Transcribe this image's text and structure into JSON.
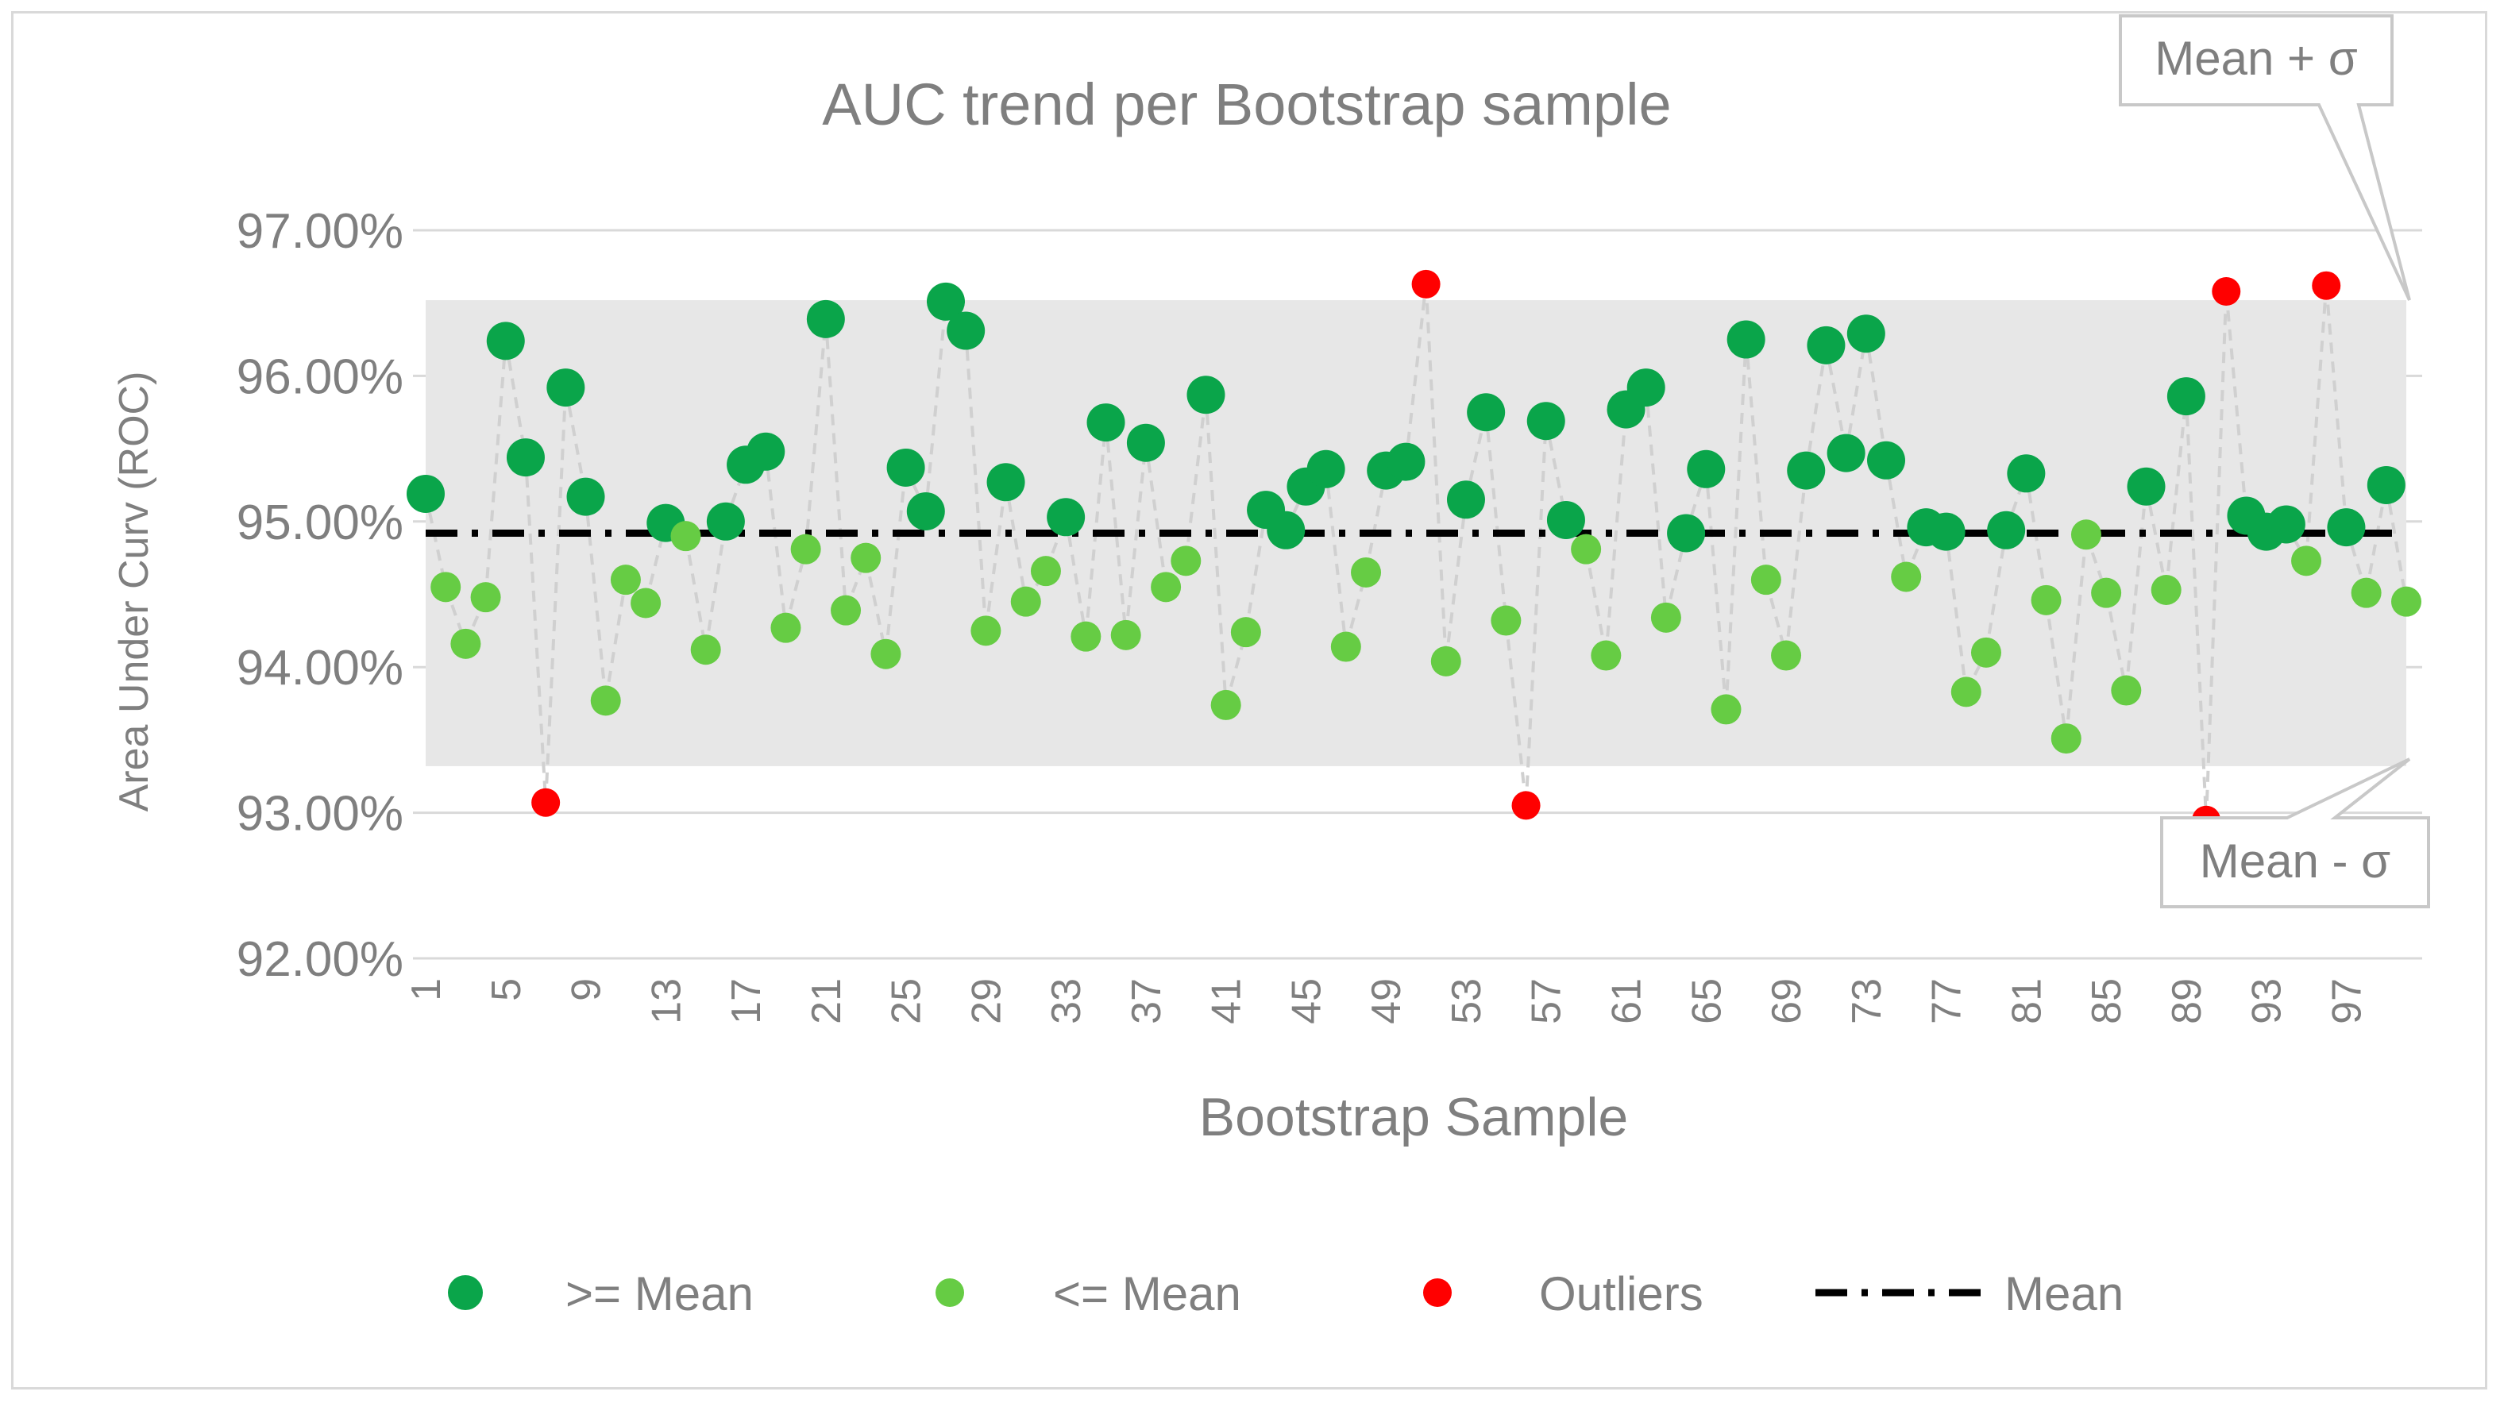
{
  "chart_data": {
    "type": "scatter",
    "title": "AUC trend per Bootstrap sample",
    "xlabel": "Bootstrap Sample",
    "ylabel": "Area Under Curv (ROC)",
    "ylim": [
      0.92,
      0.97
    ],
    "yticks": [
      "92.00%",
      "93.00%",
      "94.00%",
      "95.00%",
      "96.00%",
      "97.00%"
    ],
    "xticks": [
      "1",
      "5",
      "9",
      "13",
      "17",
      "21",
      "25",
      "29",
      "33",
      "37",
      "41",
      "45",
      "49",
      "53",
      "57",
      "61",
      "65",
      "69",
      "73",
      "77",
      "81",
      "85",
      "89",
      "93",
      "97"
    ],
    "x": [
      1,
      2,
      3,
      4,
      5,
      6,
      7,
      8,
      9,
      10,
      11,
      12,
      13,
      14,
      15,
      16,
      17,
      18,
      19,
      20,
      21,
      22,
      23,
      24,
      25,
      26,
      27,
      28,
      29,
      30,
      31,
      32,
      33,
      34,
      35,
      36,
      37,
      38,
      39,
      40,
      41,
      42,
      43,
      44,
      45,
      46,
      47,
      48,
      49,
      50,
      51,
      52,
      53,
      54,
      55,
      56,
      57,
      58,
      59,
      60,
      61,
      62,
      63,
      64,
      65,
      66,
      67,
      68,
      69,
      70,
      71,
      72,
      73,
      74,
      75,
      76,
      77,
      78,
      79,
      80,
      81,
      82,
      83,
      84,
      85,
      86,
      87,
      88,
      89,
      90,
      91,
      92,
      93,
      94,
      95,
      96,
      97,
      98,
      99,
      100
    ],
    "values": [
      0.9519,
      0.9455,
      0.9416,
      0.9448,
      0.9624,
      0.9544,
      0.9307,
      0.9592,
      0.9517,
      0.9377,
      0.946,
      0.9444,
      0.9499,
      0.949,
      0.9412,
      0.95,
      0.9539,
      0.9548,
      0.9427,
      0.9481,
      0.9639,
      0.9439,
      0.9475,
      0.9409,
      0.9537,
      0.9507,
      0.9651,
      0.9631,
      0.9425,
      0.9527,
      0.9445,
      0.9466,
      0.9503,
      0.9421,
      0.9568,
      0.9422,
      0.9554,
      0.9455,
      0.9473,
      0.9587,
      0.9374,
      0.9424,
      0.9508,
      0.9494,
      0.9524,
      0.9536,
      0.9414,
      0.9465,
      0.9535,
      0.9541,
      0.9663,
      0.9404,
      0.9515,
      0.9575,
      0.9432,
      0.9305,
      0.9569,
      0.9501,
      0.9481,
      0.9408,
      0.9577,
      0.9592,
      0.9434,
      0.9492,
      0.9536,
      0.9371,
      0.9625,
      0.946,
      0.9408,
      0.9535,
      0.9621,
      0.9547,
      0.9629,
      0.9542,
      0.9462,
      0.9496,
      0.9493,
      0.9383,
      0.941,
      0.9494,
      0.9533,
      0.9446,
      0.9351,
      0.9491,
      0.9451,
      0.9384,
      0.9524,
      0.9453,
      0.9586,
      0.9295,
      0.9658,
      0.9504,
      0.9493,
      0.9498,
      0.9473,
      0.9662,
      0.9496,
      0.9451,
      0.9525,
      0.9445
    ],
    "mean": 0.9492,
    "sigma_band": [
      0.9332,
      0.9652
    ],
    "band_labels": {
      "upper": "Mean + σ",
      "lower": "Mean - σ"
    },
    "legend": [
      {
        "label": ">= Mean",
        "color": "#0aa54a",
        "kind": "dot-large"
      },
      {
        "label": "<= Mean",
        "color": "#66cc44",
        "kind": "dot-small"
      },
      {
        "label": "Outliers",
        "color": "#ff0000",
        "kind": "dot-outlier"
      },
      {
        "label": "Mean",
        "color": "#000000",
        "kind": "dashdot-line"
      }
    ],
    "legend_position": "bottom",
    "grid": "horizontal",
    "colors": {
      "above": "#0aa54a",
      "below": "#66cc44",
      "outlier": "#ff0000",
      "band": "#e7e7e7",
      "connector": "#d0d0d0",
      "mean_line": "#000000",
      "text": "#7f7f7f"
    }
  }
}
